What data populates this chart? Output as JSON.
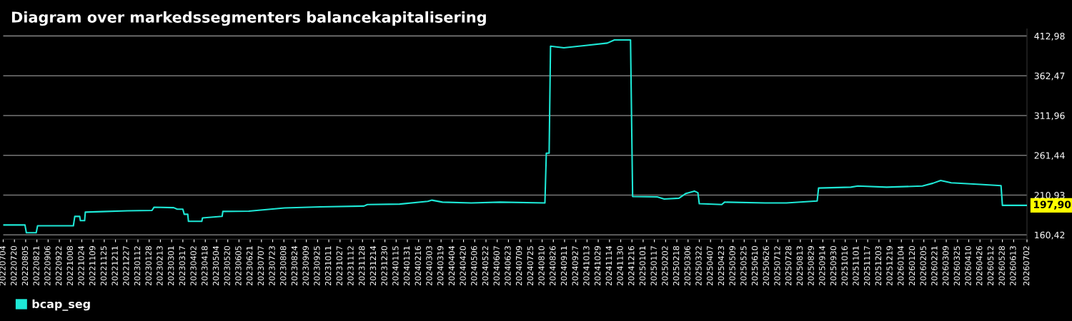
{
  "chart_data": {
    "type": "line",
    "title": "Diagram over markedssegmenters balancekapitalisering",
    "x": [
      "2022-07-04",
      "2022-08-04",
      "2022-08-06",
      "2022-08-20",
      "2022-08-22",
      "2022-10-12",
      "2022-10-14",
      "2022-10-21",
      "2022-10-22",
      "2022-10-28",
      "2022-10-29",
      "2022-11-22",
      "2022-12-28",
      "2023-02-01",
      "2023-02-04",
      "2023-03-04",
      "2023-03-09",
      "2023-03-17",
      "2023-03-19",
      "2023-03-24",
      "2023-03-25",
      "2023-04-13",
      "2023-04-14",
      "2023-05-12",
      "2023-05-13",
      "2023-06-19",
      "2023-08-09",
      "2023-09-29",
      "2023-11-30",
      "2023-12-05",
      "2024-01-20",
      "2024-02-29",
      "2024-03-06",
      "2024-03-21",
      "2024-05-01",
      "2024-06-11",
      "2024-08-14",
      "2024-08-16",
      "2024-08-20",
      "2024-08-22",
      "2024-09-10",
      "2024-10-11",
      "2024-11-11",
      "2024-11-21",
      "2024-12-14",
      "2024-12-17",
      "2025-01-21",
      "2025-01-31",
      "2025-02-21",
      "2025-03-03",
      "2025-03-15",
      "2025-03-20",
      "2025-03-22",
      "2025-04-23",
      "2025-04-27",
      "2025-06-24",
      "2025-07-24",
      "2025-09-06",
      "2025-09-08",
      "2025-10-24",
      "2025-11-03",
      "2025-12-14",
      "2026-02-03",
      "2026-02-18",
      "2026-03-01",
      "2026-03-16",
      "2026-04-26",
      "2026-05-26",
      "2026-05-28",
      "2026-07-02"
    ],
    "series": [
      {
        "name": "bcap_seg",
        "color": "#1ee8d6",
        "values": [
          173.0,
          173.0,
          163.1,
          163.1,
          172.0,
          172.0,
          183.9,
          183.9,
          178.5,
          178.5,
          189.3,
          190.0,
          191.0,
          191.5,
          195.6,
          195.0,
          193.0,
          193.0,
          186.6,
          186.6,
          177.6,
          177.6,
          182.0,
          184.0,
          190.2,
          190.5,
          194.7,
          196.0,
          197.0,
          199.0,
          199.5,
          203.0,
          204.5,
          202.0,
          201.0,
          202.0,
          201.0,
          264.1,
          264.1,
          400.0,
          398.0,
          401.0,
          404.0,
          408.0,
          408.0,
          209.1,
          208.6,
          206.0,
          207.0,
          213.0,
          216.0,
          214.0,
          200.0,
          199.0,
          202.0,
          201.0,
          201.0,
          203.5,
          219.9,
          221.0,
          222.5,
          221.0,
          222.5,
          226.0,
          229.5,
          226.5,
          224.5,
          223.0,
          197.9,
          197.9
        ]
      }
    ],
    "ylim": [
      155,
      422
    ],
    "yticks": [
      {
        "value": 160.42,
        "label": "160,42"
      },
      {
        "value": 210.93,
        "label": "210,93"
      },
      {
        "value": 261.44,
        "label": "261,44"
      },
      {
        "value": 311.96,
        "label": "311,96"
      },
      {
        "value": 362.47,
        "label": "362,47"
      },
      {
        "value": 412.98,
        "label": "412,98"
      }
    ],
    "xlim": [
      "2022-07-04",
      "2026-07-02"
    ],
    "xticks": [
      {
        "value": "2022-07-04",
        "label": "20220704"
      },
      {
        "value": "2022-07-20",
        "label": "20220720"
      },
      {
        "value": "2022-08-05",
        "label": "20220805"
      },
      {
        "value": "2022-08-21",
        "label": "20220821"
      },
      {
        "value": "2022-09-06",
        "label": "20220906"
      },
      {
        "value": "2022-09-22",
        "label": "20220922"
      },
      {
        "value": "2022-10-08",
        "label": "20221008"
      },
      {
        "value": "2022-10-24",
        "label": "20221024"
      },
      {
        "value": "2022-11-09",
        "label": "20221109"
      },
      {
        "value": "2022-11-25",
        "label": "20221125"
      },
      {
        "value": "2022-12-11",
        "label": "20221211"
      },
      {
        "value": "2022-12-27",
        "label": "20221227"
      },
      {
        "value": "2023-01-12",
        "label": "20230112"
      },
      {
        "value": "2023-01-28",
        "label": "20230128"
      },
      {
        "value": "2023-02-13",
        "label": "20230213"
      },
      {
        "value": "2023-03-01",
        "label": "20230301"
      },
      {
        "value": "2023-03-17",
        "label": "20230317"
      },
      {
        "value": "2023-04-02",
        "label": "20230402"
      },
      {
        "value": "2023-04-18",
        "label": "20230418"
      },
      {
        "value": "2023-05-04",
        "label": "20230504"
      },
      {
        "value": "2023-05-20",
        "label": "20230520"
      },
      {
        "value": "2023-06-05",
        "label": "20230605"
      },
      {
        "value": "2023-06-21",
        "label": "20230621"
      },
      {
        "value": "2023-07-07",
        "label": "20230707"
      },
      {
        "value": "2023-07-23",
        "label": "20230723"
      },
      {
        "value": "2023-08-08",
        "label": "20230808"
      },
      {
        "value": "2023-08-24",
        "label": "20230824"
      },
      {
        "value": "2023-09-09",
        "label": "20230909"
      },
      {
        "value": "2023-09-25",
        "label": "20230925"
      },
      {
        "value": "2023-10-11",
        "label": "20231011"
      },
      {
        "value": "2023-10-27",
        "label": "20231027"
      },
      {
        "value": "2023-11-12",
        "label": "20231112"
      },
      {
        "value": "2023-11-28",
        "label": "20231128"
      },
      {
        "value": "2023-12-14",
        "label": "20231214"
      },
      {
        "value": "2023-12-30",
        "label": "20231230"
      },
      {
        "value": "2024-01-15",
        "label": "20240115"
      },
      {
        "value": "2024-01-31",
        "label": "20240131"
      },
      {
        "value": "2024-02-16",
        "label": "20240216"
      },
      {
        "value": "2024-03-03",
        "label": "20240303"
      },
      {
        "value": "2024-03-19",
        "label": "20240319"
      },
      {
        "value": "2024-04-04",
        "label": "20240404"
      },
      {
        "value": "2024-04-20",
        "label": "20240420"
      },
      {
        "value": "2024-05-06",
        "label": "20240506"
      },
      {
        "value": "2024-05-22",
        "label": "20240522"
      },
      {
        "value": "2024-06-07",
        "label": "20240607"
      },
      {
        "value": "2024-06-23",
        "label": "20240623"
      },
      {
        "value": "2024-07-09",
        "label": "20240709"
      },
      {
        "value": "2024-07-25",
        "label": "20240725"
      },
      {
        "value": "2024-08-10",
        "label": "20240810"
      },
      {
        "value": "2024-08-26",
        "label": "20240826"
      },
      {
        "value": "2024-09-11",
        "label": "20240911"
      },
      {
        "value": "2024-09-27",
        "label": "20240927"
      },
      {
        "value": "2024-10-13",
        "label": "20241013"
      },
      {
        "value": "2024-10-29",
        "label": "20241029"
      },
      {
        "value": "2024-11-14",
        "label": "20241114"
      },
      {
        "value": "2024-11-30",
        "label": "20241130"
      },
      {
        "value": "2024-12-16",
        "label": "20241216"
      },
      {
        "value": "2025-01-01",
        "label": "20250101"
      },
      {
        "value": "2025-01-17",
        "label": "20250117"
      },
      {
        "value": "2025-02-02",
        "label": "20250202"
      },
      {
        "value": "2025-02-18",
        "label": "20250218"
      },
      {
        "value": "2025-03-06",
        "label": "20250306"
      },
      {
        "value": "2025-03-22",
        "label": "20250322"
      },
      {
        "value": "2025-04-07",
        "label": "20250407"
      },
      {
        "value": "2025-04-23",
        "label": "20250423"
      },
      {
        "value": "2025-05-09",
        "label": "20250509"
      },
      {
        "value": "2025-05-25",
        "label": "20250525"
      },
      {
        "value": "2025-06-10",
        "label": "20250610"
      },
      {
        "value": "2025-06-26",
        "label": "20250626"
      },
      {
        "value": "2025-07-12",
        "label": "20250712"
      },
      {
        "value": "2025-07-28",
        "label": "20250728"
      },
      {
        "value": "2025-08-13",
        "label": "20250813"
      },
      {
        "value": "2025-08-29",
        "label": "20250829"
      },
      {
        "value": "2025-09-14",
        "label": "20250914"
      },
      {
        "value": "2025-09-30",
        "label": "20250930"
      },
      {
        "value": "2025-10-16",
        "label": "20251016"
      },
      {
        "value": "2025-11-01",
        "label": "20251101"
      },
      {
        "value": "2025-11-17",
        "label": "20251117"
      },
      {
        "value": "2025-12-03",
        "label": "20251203"
      },
      {
        "value": "2025-12-19",
        "label": "20251219"
      },
      {
        "value": "2026-01-04",
        "label": "20260104"
      },
      {
        "value": "2026-01-20",
        "label": "20260120"
      },
      {
        "value": "2026-02-05",
        "label": "20260205"
      },
      {
        "value": "2026-02-21",
        "label": "20260221"
      },
      {
        "value": "2026-03-09",
        "label": "20260309"
      },
      {
        "value": "2026-03-25",
        "label": "20260325"
      },
      {
        "value": "2026-04-10",
        "label": "20260410"
      },
      {
        "value": "2026-04-26",
        "label": "20260426"
      },
      {
        "value": "2026-05-12",
        "label": "20260512"
      },
      {
        "value": "2026-05-28",
        "label": "20260528"
      },
      {
        "value": "2026-06-13",
        "label": "20260613"
      },
      {
        "value": "2026-07-02",
        "label": "20260702"
      }
    ],
    "annotations": [
      {
        "text": "197,90",
        "x": "2026-07-02",
        "y": 197.9
      }
    ],
    "grid": "y",
    "legend": "bottom left"
  }
}
